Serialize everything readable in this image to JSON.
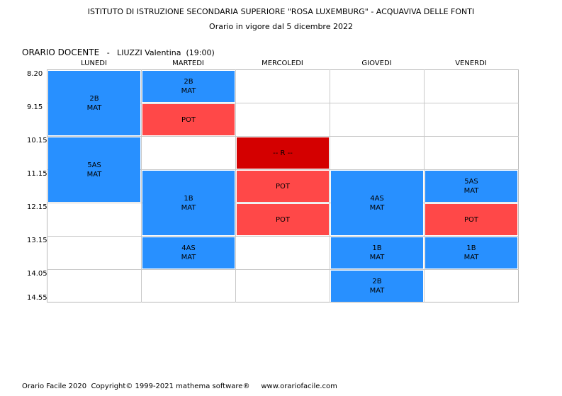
{
  "header": {
    "school": "ISTITUTO DI ISTRUZIONE SECONDARIA SUPERIORE \"ROSA LUXEMBURG\" - ACQUAVIVA DELLE FONTI",
    "validity": "Orario in vigore dal 5 dicembre 2022"
  },
  "teacher": {
    "label": "ORARIO DOCENTE",
    "separator": "-",
    "name": "LIUZZI Valentina",
    "hours": "(19:00)"
  },
  "days": [
    "LUNEDI",
    "MARTEDI",
    "MERCOLEDI",
    "GIOVEDI",
    "VENERDI"
  ],
  "times": [
    "8.20",
    "9.15",
    "10.15",
    "11.15",
    "12.15",
    "13.15",
    "14.05",
    "14.55"
  ],
  "lessons": [
    {
      "day": "LUNEDI",
      "slot": "8.20",
      "periods": 2,
      "class": "2B",
      "subject": "MAT",
      "color": "#2890ff"
    },
    {
      "day": "LUNEDI",
      "slot": "10.15",
      "periods": 2,
      "class": "5AS",
      "subject": "MAT",
      "color": "#2890ff"
    },
    {
      "day": "MARTEDI",
      "slot": "8.20",
      "periods": 1,
      "class": "2B",
      "subject": "MAT",
      "color": "#2890ff"
    },
    {
      "day": "MARTEDI",
      "slot": "9.15",
      "periods": 1,
      "class": "POT",
      "subject": "",
      "color": "#ff4848"
    },
    {
      "day": "MARTEDI",
      "slot": "11.15",
      "periods": 2,
      "class": "1B",
      "subject": "MAT",
      "color": "#2890ff"
    },
    {
      "day": "MARTEDI",
      "slot": "13.15",
      "periods": 1,
      "class": "4AS",
      "subject": "MAT",
      "color": "#2890ff"
    },
    {
      "day": "MERCOLEDI",
      "slot": "10.15",
      "periods": 1,
      "class": "-- R --",
      "subject": "",
      "color": "#d40000"
    },
    {
      "day": "MERCOLEDI",
      "slot": "11.15",
      "periods": 1,
      "class": "POT",
      "subject": "",
      "color": "#ff4848"
    },
    {
      "day": "MERCOLEDI",
      "slot": "12.15",
      "periods": 1,
      "class": "POT",
      "subject": "",
      "color": "#ff4848"
    },
    {
      "day": "GIOVEDI",
      "slot": "11.15",
      "periods": 2,
      "class": "4AS",
      "subject": "MAT",
      "color": "#2890ff"
    },
    {
      "day": "GIOVEDI",
      "slot": "13.15",
      "periods": 1,
      "class": "1B",
      "subject": "MAT",
      "color": "#2890ff"
    },
    {
      "day": "GIOVEDI",
      "slot": "14.05",
      "periods": 1,
      "class": "2B",
      "subject": "MAT",
      "color": "#2890ff"
    },
    {
      "day": "VENERDI",
      "slot": "11.15",
      "periods": 1,
      "class": "5AS",
      "subject": "MAT",
      "color": "#2890ff"
    },
    {
      "day": "VENERDI",
      "slot": "12.15",
      "periods": 1,
      "class": "POT",
      "subject": "",
      "color": "#ff4848"
    },
    {
      "day": "VENERDI",
      "slot": "13.15",
      "periods": 1,
      "class": "1B",
      "subject": "MAT",
      "color": "#2890ff"
    }
  ],
  "footer": {
    "product": "Orario Facile 2020",
    "copyright": "Copyright© 1999-2021 mathema software®",
    "website": "www.orariofacile.com"
  }
}
